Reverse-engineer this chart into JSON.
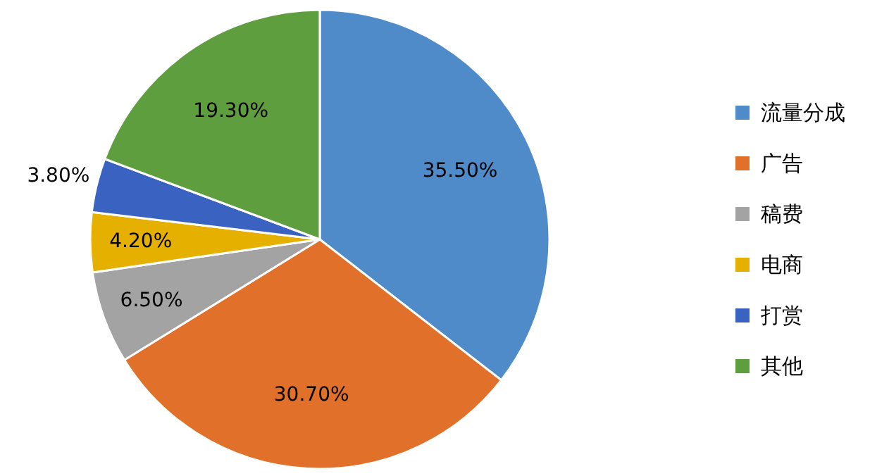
{
  "chart_data": {
    "type": "pie",
    "categories": [
      "流量分成",
      "广告",
      "稿费",
      "电商",
      "打赏",
      "其他"
    ],
    "values": [
      35.5,
      30.7,
      6.5,
      4.2,
      3.8,
      19.3
    ],
    "colors": [
      "#4f8ac9",
      "#e0702a",
      "#a3a3a3",
      "#e6b000",
      "#3a62c0",
      "#5e9e3e"
    ],
    "value_labels": [
      "35.50%",
      "30.70%",
      "6.50%",
      "4.20%",
      "3.80%",
      "19.30%"
    ],
    "legend": "right"
  }
}
